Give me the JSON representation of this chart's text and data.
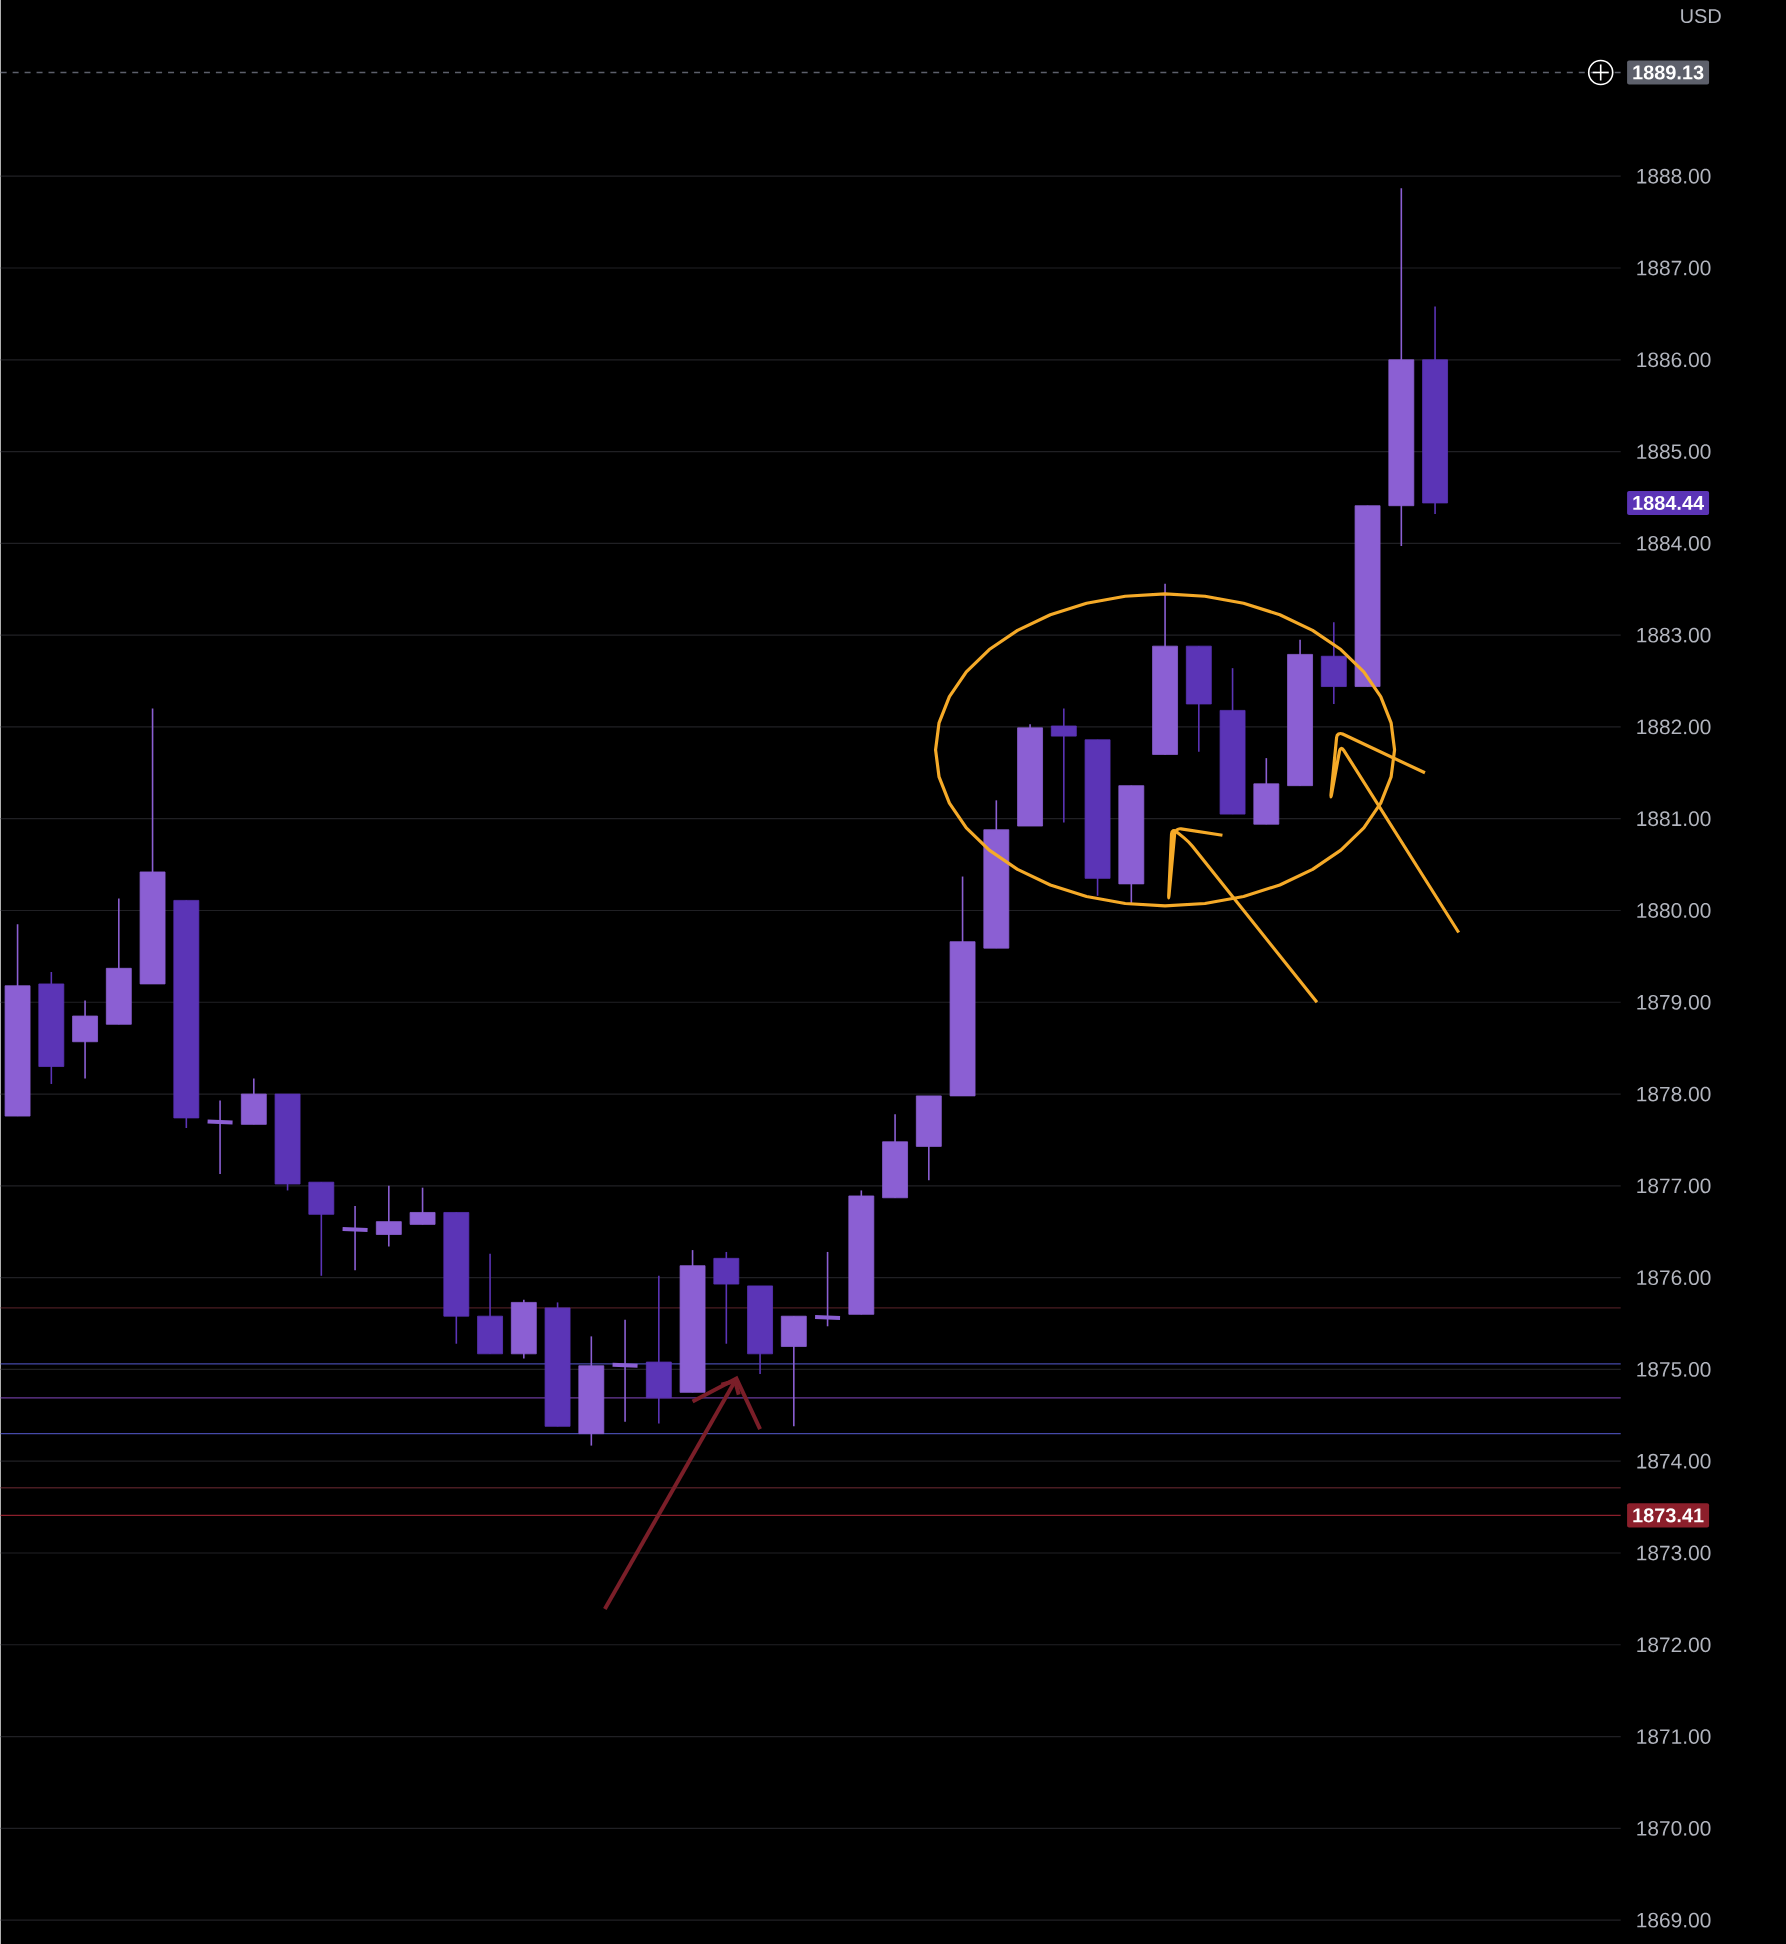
{
  "chart_data": {
    "type": "candlestick",
    "ylabel": "USD",
    "tick_labels": "y",
    "grid": "y",
    "categories": [
      null,
      null,
      null,
      null,
      null,
      null,
      null,
      null,
      null,
      null,
      null,
      null,
      null,
      null,
      null,
      null,
      null,
      null,
      null,
      null,
      null,
      null,
      null,
      null,
      null,
      null,
      null,
      null,
      null,
      null,
      null,
      null,
      null,
      null,
      null,
      null,
      null,
      null,
      null,
      null,
      null,
      null,
      null,
      null,
      null,
      null,
      null,
      null
    ],
    "ohlc": [
      [
        1877.76,
        1879.85,
        1877.76,
        1879.18
      ],
      [
        1879.2,
        1879.33,
        1878.11,
        1878.3
      ],
      [
        1878.57,
        1879.02,
        1878.17,
        1878.85
      ],
      [
        1878.76,
        1880.13,
        1878.76,
        1879.37
      ],
      [
        1879.2,
        1882.2,
        1879.2,
        1880.42
      ],
      [
        1880.11,
        1880.11,
        1877.63,
        1877.74
      ],
      [
        1877.7,
        1877.93,
        1877.13,
        1877.69
      ],
      [
        1877.67,
        1878.17,
        1877.67,
        1878.0
      ],
      [
        1878.0,
        1878.0,
        1876.95,
        1877.02
      ],
      [
        1877.04,
        1877.04,
        1876.02,
        1876.69
      ],
      [
        1876.53,
        1876.78,
        1876.08,
        1876.52
      ],
      [
        1876.47,
        1877.0,
        1876.34,
        1876.61
      ],
      [
        1876.58,
        1876.98,
        1876.58,
        1876.71
      ],
      [
        1876.71,
        1876.71,
        1875.28,
        1875.58
      ],
      [
        1875.58,
        1876.26,
        1875.17,
        1875.17
      ],
      [
        1875.17,
        1875.76,
        1875.12,
        1875.73
      ],
      [
        1875.67,
        1875.73,
        1874.38,
        1874.38
      ],
      [
        1874.3,
        1875.36,
        1874.17,
        1875.04
      ],
      [
        1875.05,
        1875.54,
        1874.43,
        1875.04
      ],
      [
        1875.08,
        1876.02,
        1874.41,
        1874.69
      ],
      [
        1874.75,
        1876.3,
        1874.75,
        1876.13
      ],
      [
        1876.21,
        1876.28,
        1875.28,
        1875.93
      ],
      [
        1875.91,
        1875.91,
        1874.95,
        1875.17
      ],
      [
        1875.25,
        1875.58,
        1874.38,
        1875.58
      ],
      [
        1875.57,
        1876.28,
        1875.47,
        1875.56
      ],
      [
        1875.6,
        1876.95,
        1875.6,
        1876.89
      ],
      [
        1876.87,
        1877.78,
        1876.87,
        1877.48
      ],
      [
        1877.43,
        1877.98,
        1877.06,
        1877.98
      ],
      [
        1877.98,
        1880.37,
        1877.98,
        1879.66
      ],
      [
        1879.59,
        1881.2,
        1879.59,
        1880.88
      ],
      [
        1880.92,
        1882.03,
        1880.92,
        1881.99
      ],
      [
        1882.01,
        1882.2,
        1880.96,
        1881.9
      ],
      [
        1881.86,
        1881.86,
        1880.16,
        1880.35
      ],
      [
        1880.29,
        1881.36,
        1880.07,
        1881.36
      ],
      [
        1881.7,
        1883.56,
        1881.7,
        1882.88
      ],
      [
        1882.88,
        1882.88,
        1881.73,
        1882.25
      ],
      [
        1882.18,
        1882.64,
        1881.05,
        1881.05
      ],
      [
        1880.94,
        1881.66,
        1880.94,
        1881.38
      ],
      [
        1881.36,
        1882.95,
        1881.36,
        1882.79
      ],
      [
        1882.77,
        1883.14,
        1882.25,
        1882.44
      ],
      [
        1882.44,
        1884.41,
        1882.44,
        1884.41
      ],
      [
        1884.41,
        1887.87,
        1883.97,
        1886.0
      ],
      [
        1886.0,
        1886.58,
        1884.32,
        1884.44
      ],
      null,
      null,
      null,
      null,
      null
    ],
    "colors": [
      "#8b5fd3",
      "#5b34b6",
      "#8b5fd3",
      "#8b5fd3",
      "#8b5fd3",
      "#5b34b6",
      "#8b5fd3",
      "#8b5fd3",
      "#5b34b6",
      "#5b34b6",
      "#8b5fd3",
      "#8b5fd3",
      "#8b5fd3",
      "#5b34b6",
      "#5b34b6",
      "#8b5fd3",
      "#5b34b6",
      "#8b5fd3",
      "#8b5fd3",
      "#5b34b6",
      "#8b5fd3",
      "#5b34b6",
      "#5b34b6",
      "#8b5fd3",
      "#8b5fd3",
      "#8b5fd3",
      "#8b5fd3",
      "#8b5fd3",
      "#8b5fd3",
      "#8b5fd3",
      "#8b5fd3",
      "#5b34b6",
      "#5b34b6",
      "#8b5fd3",
      "#8b5fd3",
      "#5b34b6",
      "#5b34b6",
      "#8b5fd3",
      "#8b5fd3",
      "#5b34b6",
      "#8b5fd3",
      "#8b5fd3",
      "#5b34b6",
      null,
      null,
      null,
      null,
      null
    ],
    "ylim": [
      1868.74,
      1889.92
    ],
    "yticks": [
      {
        "value": 1869,
        "label": "1869.00"
      },
      {
        "value": 1870,
        "label": "1870.00"
      },
      {
        "value": 1871,
        "label": "1871.00"
      },
      {
        "value": 1872,
        "label": "1872.00"
      },
      {
        "value": 1873,
        "label": "1873.00"
      },
      {
        "value": 1874,
        "label": "1874.00"
      },
      {
        "value": 1875,
        "label": "1875.00"
      },
      {
        "value": 1876,
        "label": "1876.00"
      },
      {
        "value": 1877,
        "label": "1877.00"
      },
      {
        "value": 1878,
        "label": "1878.00"
      },
      {
        "value": 1879,
        "label": "1879.00"
      },
      {
        "value": 1880,
        "label": "1880.00"
      },
      {
        "value": 1881,
        "label": "1881.00"
      },
      {
        "value": 1882,
        "label": "1882.00"
      },
      {
        "value": 1883,
        "label": "1883.00"
      },
      {
        "value": 1884,
        "label": "1884.00"
      },
      {
        "value": 1885,
        "label": "1885.00"
      },
      {
        "value": 1886,
        "label": "1886.00"
      },
      {
        "value": 1887,
        "label": "1887.00"
      },
      {
        "value": 1888,
        "label": "1888.00"
      }
    ],
    "ref_lines": [
      {
        "axis": "y",
        "value": 1889.13,
        "label": "1889.13",
        "color": "#5d606b",
        "line_style": "dashed"
      },
      {
        "axis": "y",
        "value": 1875.67,
        "color": "#4a1c22"
      },
      {
        "axis": "y",
        "value": 1875.06,
        "color": "#4549a8"
      },
      {
        "axis": "y",
        "value": 1874.69,
        "color": "#6a3a9a"
      },
      {
        "axis": "y",
        "value": 1874.3,
        "color": "#4549a8"
      },
      {
        "axis": "y",
        "value": 1873.71,
        "color": "#4a1c22"
      },
      {
        "axis": "y",
        "value": 1873.41,
        "label": "1873.41",
        "color": "#8c1f2b"
      }
    ],
    "annotations": [
      "1884.44"
    ]
  }
}
